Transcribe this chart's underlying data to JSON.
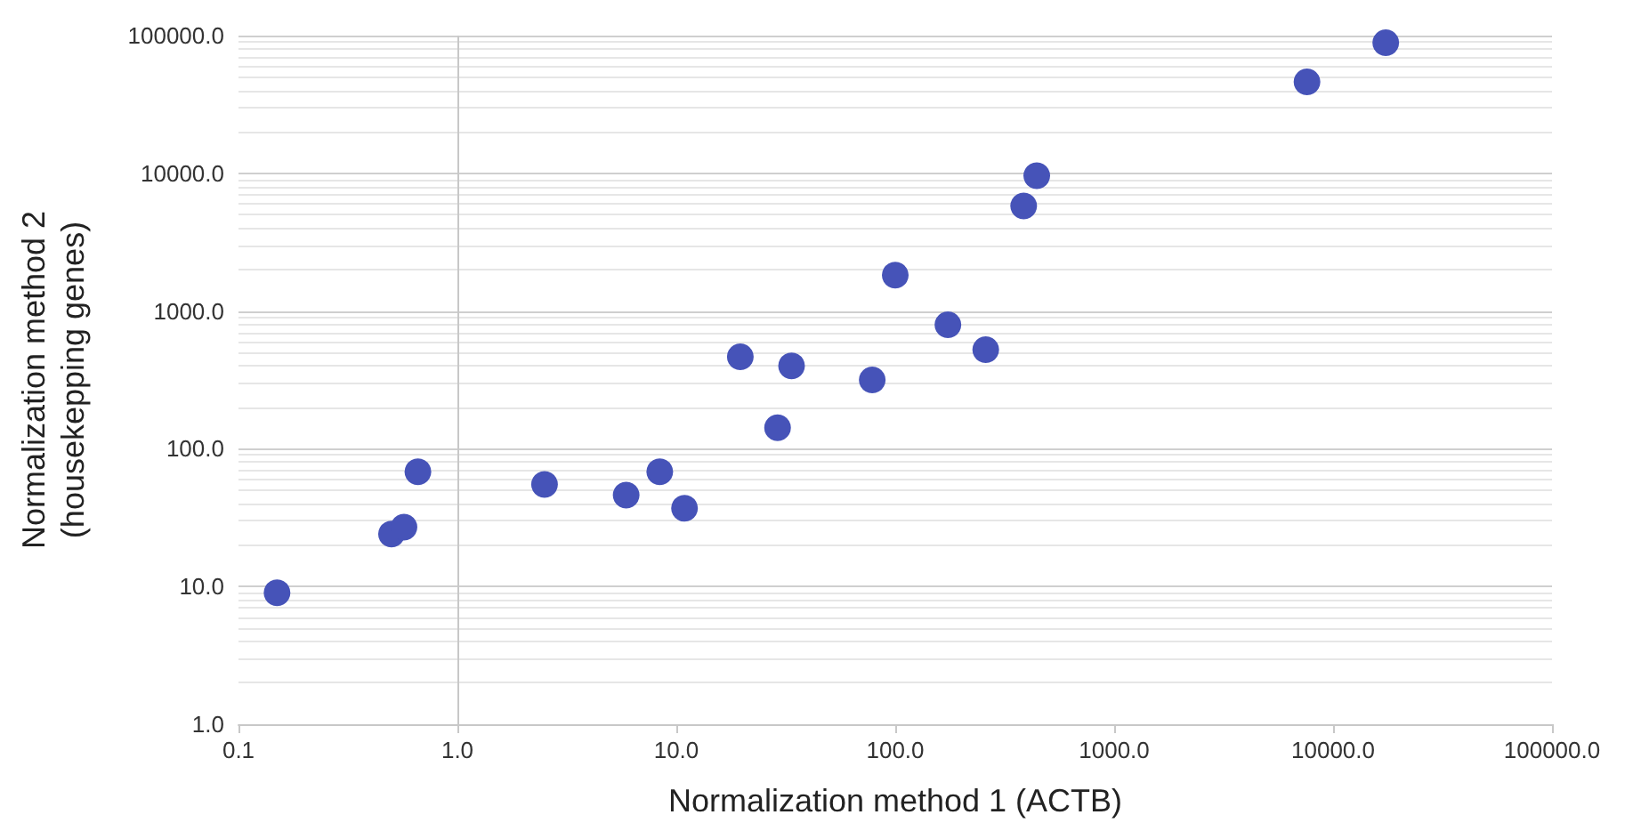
{
  "chart_data": {
    "type": "scatter",
    "xlabel": "Normalization method 1 (ACTB)",
    "ylabel": "Normalization method 2\n(housekepping genes)",
    "x": [
      0.15,
      0.5,
      0.57,
      0.66,
      2.5,
      5.9,
      8.4,
      10.9,
      19.6,
      29,
      33.6,
      78.5,
      100,
      174,
      259,
      386,
      443,
      7600,
      17400
    ],
    "series": [
      {
        "color": "#4653b8",
        "values": [
          9,
          24,
          27,
          68,
          55,
          46,
          68,
          37,
          465,
          142,
          400,
          316,
          1820,
          794,
          524,
          5790,
          9600,
          46200,
          88800
        ]
      }
    ],
    "log": "xy",
    "xlim": [
      0.1,
      100000
    ],
    "ylim": [
      1,
      100000
    ],
    "xticks": [
      {
        "value": 0.1,
        "label": "0.1"
      },
      {
        "value": 1,
        "label": "1.0"
      },
      {
        "value": 10,
        "label": "10.0"
      },
      {
        "value": 100,
        "label": "100.0"
      },
      {
        "value": 1000,
        "label": "1000.0"
      },
      {
        "value": 10000,
        "label": "10000.0"
      },
      {
        "value": 100000,
        "label": "100000.0"
      }
    ],
    "yticks": [
      {
        "value": 1,
        "label": "1.0"
      },
      {
        "value": 10,
        "label": "10.0"
      },
      {
        "value": 100,
        "label": "100.0"
      },
      {
        "value": 1000,
        "label": "1000.0"
      },
      {
        "value": 10000,
        "label": "10000.0"
      },
      {
        "value": 100000,
        "label": "100000.0"
      }
    ],
    "ref_lines": [
      {
        "axis": "x",
        "value": 1,
        "color": "#c8c8c8"
      }
    ],
    "grid": "y",
    "marker": "circle"
  }
}
